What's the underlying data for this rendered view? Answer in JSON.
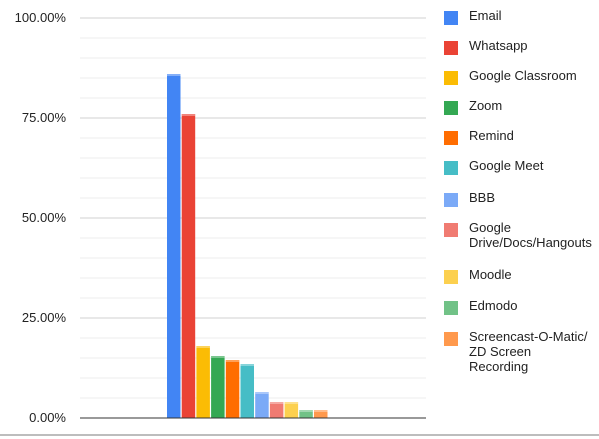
{
  "chart_data": {
    "type": "bar",
    "title": "",
    "xlabel": "",
    "ylabel": "",
    "ylim": [
      0,
      100
    ],
    "y_tick_labels": [
      "0.00%",
      "25.00%",
      "50.00%",
      "75.00%",
      "100.00%"
    ],
    "y_tick_values": [
      0,
      25,
      50,
      75,
      100
    ],
    "minor_gridlines": true,
    "grid": true,
    "legend_position": "right",
    "series": [
      {
        "name": "Email",
        "value": 86,
        "color": "#4285f4"
      },
      {
        "name": "Whatsapp",
        "value": 76,
        "color": "#ea4335"
      },
      {
        "name": "Google Classroom",
        "value": 18,
        "color": "#fbbc04"
      },
      {
        "name": "Zoom",
        "value": 15.5,
        "color": "#34a853"
      },
      {
        "name": "Remind",
        "value": 14.5,
        "color": "#ff6d01"
      },
      {
        "name": "Google Meet",
        "value": 13.5,
        "color": "#46bdc6"
      },
      {
        "name": "BBB",
        "value": 6.5,
        "color": "#7baaf7"
      },
      {
        "name": "Google\nDrive/Docs/Hangouts",
        "value": 4,
        "color": "#f07b72"
      },
      {
        "name": "Moodle",
        "value": 4,
        "color": "#fcd04f"
      },
      {
        "name": "Edmodo",
        "value": 2,
        "color": "#71c287"
      },
      {
        "name": "Screencast-O-Matic/\nZD Screen\nRecording",
        "value": 2,
        "color": "#ff994d"
      }
    ]
  }
}
